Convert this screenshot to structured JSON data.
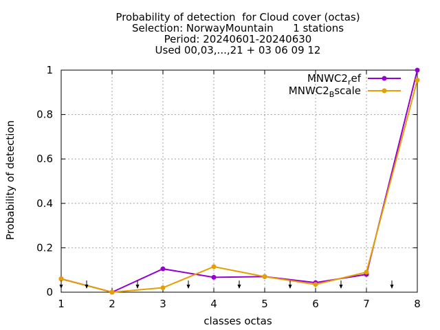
{
  "chart_data": {
    "type": "line",
    "title_lines": [
      "Probability of detection  for Cloud cover (octas)",
      "Selection: NorwayMountain      1 stations",
      "Period: 20240601-20240630",
      "Used 00,03,...,21 + 03 06 09 12"
    ],
    "xlabel": "classes octas",
    "ylabel": "Probability of detection",
    "xlim": [
      1,
      8
    ],
    "ylim": [
      0,
      1
    ],
    "x_ticks": [
      "1",
      "2",
      "3",
      "4",
      "5",
      "6",
      "7",
      "8"
    ],
    "y_ticks": [
      "0",
      "0.2",
      "0.4",
      "0.6",
      "0.8",
      "1"
    ],
    "grid": true,
    "legend_position": "top-right",
    "series": [
      {
        "name_base": "MNWC2",
        "name_sub": "r",
        "name_tail": "ef",
        "color": "#9400d3",
        "x": [
          1,
          2,
          3,
          4,
          5,
          6,
          7,
          8
        ],
        "y": [
          0.06,
          0.0,
          0.105,
          0.067,
          0.07,
          0.043,
          0.08,
          1.0
        ]
      },
      {
        "name_base": "MNWC2",
        "name_sub": "B",
        "name_tail": "scale",
        "color": "#e69f00",
        "x": [
          1,
          2,
          3,
          4,
          5,
          6,
          7,
          8
        ],
        "y": [
          0.06,
          0.0,
          0.02,
          0.115,
          0.07,
          0.035,
          0.09,
          0.955
        ]
      }
    ],
    "arrow_markers_x": [
      1,
      1.5,
      2.5,
      3.5,
      4.5,
      5.5,
      6.5,
      7.5
    ]
  }
}
